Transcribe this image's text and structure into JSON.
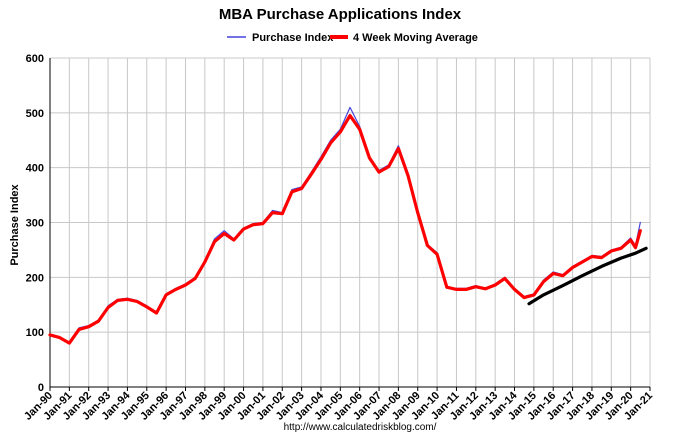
{
  "chart_data": {
    "type": "line",
    "title": "MBA Purchase Applications Index",
    "ylabel": "Purchase Index",
    "xlabel": "",
    "ylim": [
      0,
      600
    ],
    "yticks": [
      0,
      100,
      200,
      300,
      400,
      500,
      600
    ],
    "xlim": [
      1990,
      2021
    ],
    "xtick_labels": [
      "Jan-90",
      "Jan-91",
      "Jan-92",
      "Jan-93",
      "Jan-94",
      "Jan-95",
      "Jan-96",
      "Jan-97",
      "Jan-98",
      "Jan-99",
      "Jan-00",
      "Jan-01",
      "Jan-02",
      "Jan-03",
      "Jan-04",
      "Jan-05",
      "Jan-06",
      "Jan-07",
      "Jan-08",
      "Jan-09",
      "Jan-10",
      "Jan-11",
      "Jan-12",
      "Jan-13",
      "Jan-14",
      "Jan-15",
      "Jan-16",
      "Jan-17",
      "Jan-18",
      "Jan-19",
      "Jan-20",
      "Jan-21"
    ],
    "grid": true,
    "legend_position": "top",
    "source": "http://www.calculatedriskblog.com/",
    "colors": {
      "index": "#4444dd",
      "average": "#ff0000",
      "trend": "#000000",
      "grid": "#c8c8c8"
    },
    "series": [
      {
        "name": "Purchase Index",
        "x": [
          1990.0,
          1990.5,
          1991.0,
          1991.5,
          1992.0,
          1992.5,
          1993.0,
          1993.5,
          1994.0,
          1994.5,
          1995.0,
          1995.5,
          1996.0,
          1996.5,
          1997.0,
          1997.5,
          1998.0,
          1998.5,
          1999.0,
          1999.5,
          2000.0,
          2000.5,
          2001.0,
          2001.5,
          2002.0,
          2002.5,
          2003.0,
          2003.5,
          2004.0,
          2004.5,
          2005.0,
          2005.5,
          2006.0,
          2006.5,
          2007.0,
          2007.5,
          2008.0,
          2008.5,
          2009.0,
          2009.5,
          2010.0,
          2010.5,
          2011.0,
          2011.5,
          2012.0,
          2012.5,
          2013.0,
          2013.5,
          2014.0,
          2014.5,
          2015.0,
          2015.5,
          2016.0,
          2016.5,
          2017.0,
          2017.5,
          2018.0,
          2018.5,
          2019.0,
          2019.5,
          2020.0,
          2020.25,
          2020.5
        ],
        "values": [
          95,
          90,
          82,
          108,
          112,
          122,
          148,
          160,
          162,
          158,
          148,
          135,
          170,
          180,
          188,
          200,
          230,
          270,
          285,
          270,
          290,
          298,
          300,
          322,
          318,
          360,
          365,
          392,
          420,
          450,
          470,
          510,
          475,
          420,
          395,
          405,
          440,
          390,
          320,
          260,
          245,
          180,
          180,
          180,
          185,
          180,
          188,
          200,
          180,
          165,
          170,
          195,
          210,
          205,
          220,
          230,
          240,
          238,
          250,
          255,
          272,
          258,
          300
        ]
      },
      {
        "name": "4 Week Moving Average",
        "x": [
          1990.0,
          1990.5,
          1991.0,
          1991.5,
          1992.0,
          1992.5,
          1993.0,
          1993.5,
          1994.0,
          1994.5,
          1995.0,
          1995.5,
          1996.0,
          1996.5,
          1997.0,
          1997.5,
          1998.0,
          1998.5,
          1999.0,
          1999.5,
          2000.0,
          2000.5,
          2001.0,
          2001.5,
          2002.0,
          2002.5,
          2003.0,
          2003.5,
          2004.0,
          2004.5,
          2005.0,
          2005.5,
          2006.0,
          2006.5,
          2007.0,
          2007.5,
          2008.0,
          2008.5,
          2009.0,
          2009.5,
          2010.0,
          2010.5,
          2011.0,
          2011.5,
          2012.0,
          2012.5,
          2013.0,
          2013.5,
          2014.0,
          2014.5,
          2015.0,
          2015.5,
          2016.0,
          2016.5,
          2017.0,
          2017.5,
          2018.0,
          2018.5,
          2019.0,
          2019.5,
          2020.0,
          2020.25,
          2020.5
        ],
        "values": [
          95,
          90,
          80,
          105,
          110,
          120,
          145,
          158,
          160,
          156,
          146,
          135,
          168,
          178,
          186,
          198,
          228,
          265,
          280,
          268,
          288,
          296,
          298,
          318,
          316,
          356,
          362,
          388,
          415,
          445,
          465,
          495,
          470,
          418,
          392,
          402,
          435,
          385,
          318,
          258,
          242,
          182,
          178,
          178,
          183,
          179,
          186,
          198,
          178,
          163,
          168,
          192,
          207,
          203,
          218,
          228,
          238,
          236,
          248,
          253,
          268,
          254,
          285
        ]
      },
      {
        "name": "",
        "x": [
          2014.75,
          2015.5,
          2016.5,
          2017.5,
          2018.5,
          2019.5,
          2020.25,
          2020.8
        ],
        "values": [
          152,
          168,
          185,
          203,
          220,
          235,
          244,
          253
        ]
      }
    ]
  }
}
